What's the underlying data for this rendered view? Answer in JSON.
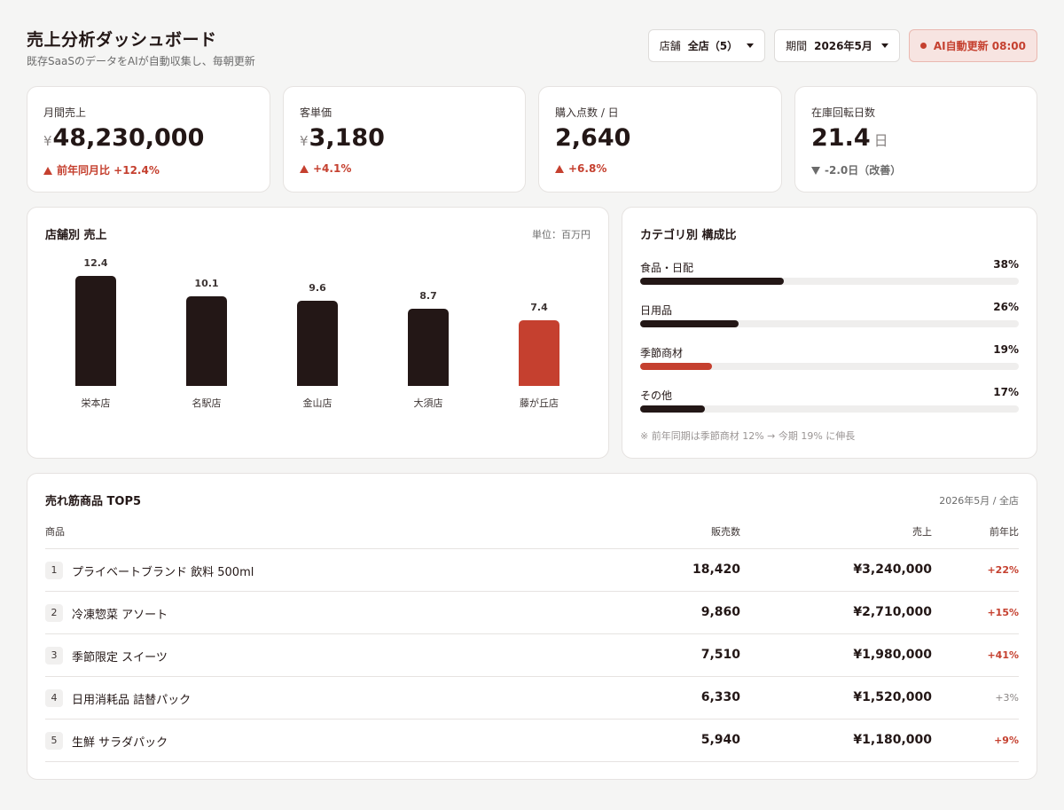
{
  "header": {
    "title": "売上分析ダッシュボード",
    "subtitle": "既存SaaSのデータをAIが自動収集し、毎朝更新",
    "store_select": {
      "label": "店舗",
      "value": "全店（5）"
    },
    "period_select": {
      "label": "期間",
      "value": "2026年5月"
    },
    "ai_badge": "AI自動更新 08:00"
  },
  "kpis": [
    {
      "label": "月間売上",
      "prefix": "¥",
      "value": "48,230,000",
      "suffix": "",
      "delta": "前年同月比 +12.4%",
      "trend": "up"
    },
    {
      "label": "客単価",
      "prefix": "¥",
      "value": "3,180",
      "suffix": "",
      "delta": "+4.1%",
      "trend": "up"
    },
    {
      "label": "購入点数 / 日",
      "prefix": "",
      "value": "2,640",
      "suffix": "",
      "delta": "+6.8%",
      "trend": "up"
    },
    {
      "label": "在庫回転日数",
      "prefix": "",
      "value": "21.4",
      "suffix": "日",
      "delta": "-2.0日（改善）",
      "trend": "down"
    }
  ],
  "store_chart": {
    "title": "店舗別 売上",
    "unit": "単位：百万円"
  },
  "chart_data": {
    "type": "bar",
    "categories": [
      "栄本店",
      "名駅店",
      "金山店",
      "大須店",
      "藤が丘店"
    ],
    "values": [
      12.4,
      10.1,
      9.6,
      8.7,
      7.4
    ],
    "value_labels": [
      "12.4",
      "10.1",
      "9.6",
      "8.7",
      "7.4"
    ],
    "ylim": [
      0,
      12.4
    ],
    "colors": [
      "#231716",
      "#231716",
      "#231716",
      "#231716",
      "#c5402f"
    ]
  },
  "category_panel": {
    "title": "カテゴリ別 構成比",
    "items": [
      {
        "name": "食品・日配",
        "pct_label": "38%",
        "pct": 0.38,
        "color": "#231716"
      },
      {
        "name": "日用品",
        "pct_label": "26%",
        "pct": 0.26,
        "color": "#231716"
      },
      {
        "name": "季節商材",
        "pct_label": "19%",
        "pct": 0.19,
        "color": "#c5402f"
      },
      {
        "name": "その他",
        "pct_label": "17%",
        "pct": 0.17,
        "color": "#231716"
      }
    ],
    "note": "※ 前年同期は季節商材 12% → 今期 19% に伸長"
  },
  "top_products": {
    "title": "売れ筋商品 TOP5",
    "meta": "2026年5月 / 全店",
    "columns": {
      "product": "商品",
      "qty": "販売数",
      "sales": "売上",
      "yoy": "前年比"
    },
    "rows": [
      {
        "rank": "1",
        "name": "プライベートブランド 飲料 500ml",
        "qty": "18,420",
        "sales": "¥3,240,000",
        "yoy": "+22%",
        "hl": true
      },
      {
        "rank": "2",
        "name": "冷凍惣菜 アソート",
        "qty": "9,860",
        "sales": "¥2,710,000",
        "yoy": "+15%",
        "hl": true
      },
      {
        "rank": "3",
        "name": "季節限定 スイーツ",
        "qty": "7,510",
        "sales": "¥1,980,000",
        "yoy": "+41%",
        "hl": true
      },
      {
        "rank": "4",
        "name": "日用消耗品 詰替パック",
        "qty": "6,330",
        "sales": "¥1,520,000",
        "yoy": "+3%",
        "hl": false
      },
      {
        "rank": "5",
        "name": "生鮮 サラダパック",
        "qty": "5,940",
        "sales": "¥1,180,000",
        "yoy": "+9%",
        "hl": true
      }
    ]
  }
}
